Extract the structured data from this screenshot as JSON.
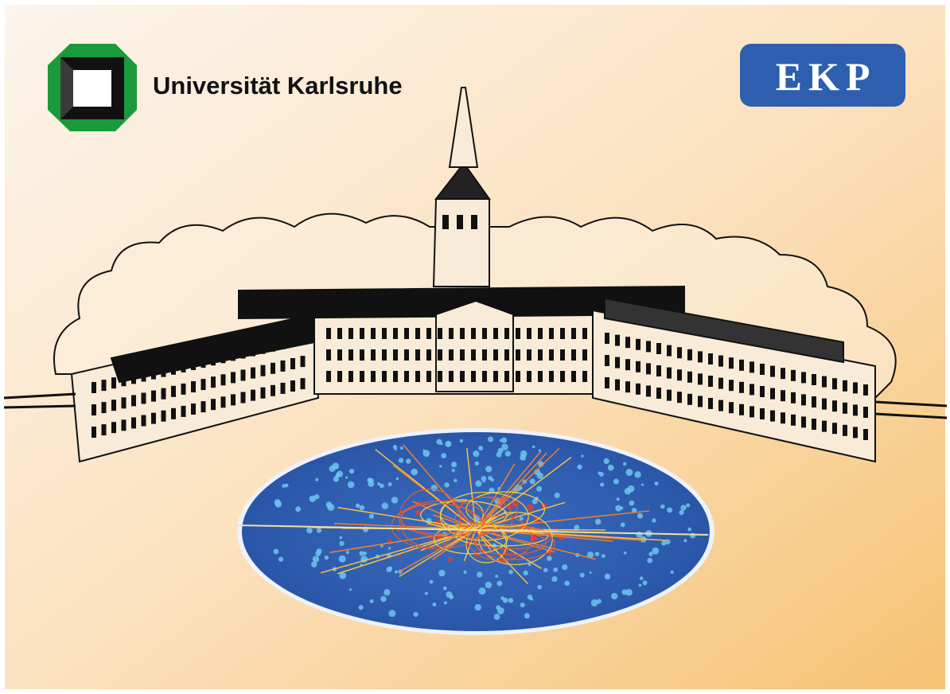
{
  "header": {
    "university": "Universität Karlsruhe",
    "badge": "EKP"
  }
}
